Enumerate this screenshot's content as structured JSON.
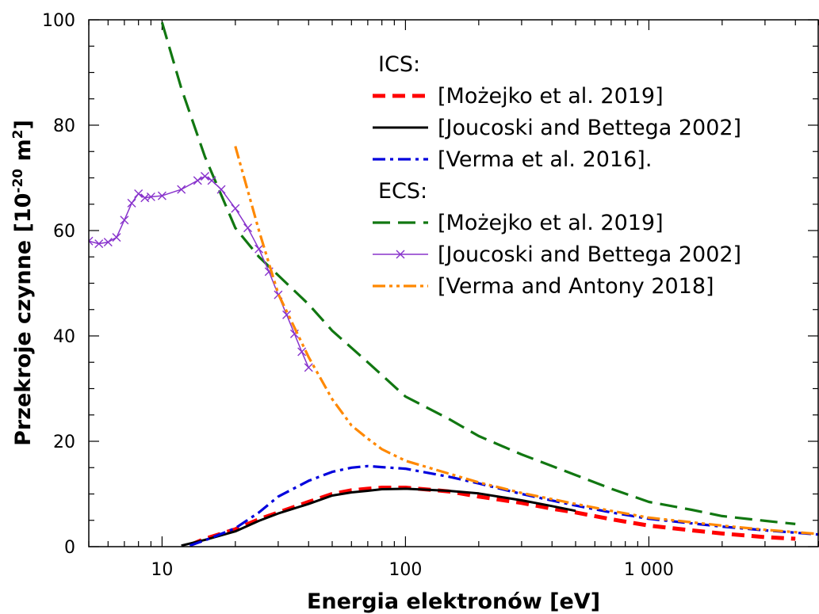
{
  "chart_data": {
    "type": "line",
    "xscale": "log",
    "xlim": [
      5,
      5000
    ],
    "ylim": [
      0,
      100
    ],
    "xlabel": "Energia elektronów [eV]",
    "ylabel": {
      "main": "Przekroje czynne [10",
      "exp": "-20",
      "mid": " m",
      "exp2": "2",
      "end": "]"
    },
    "xticks": [
      {
        "v": 10,
        "label": "10"
      },
      {
        "v": 100,
        "label": "100"
      },
      {
        "v": 1000,
        "label": "1 000"
      }
    ],
    "yticks": [
      {
        "v": 0,
        "label": "0"
      },
      {
        "v": 20,
        "label": "20"
      },
      {
        "v": 40,
        "label": "40"
      },
      {
        "v": 60,
        "label": "60"
      },
      {
        "v": 80,
        "label": "80"
      },
      {
        "v": 100,
        "label": "100"
      }
    ],
    "grid": false,
    "legend_position": "top-right",
    "legend_groups": [
      "ICS:",
      "ECS:"
    ],
    "series": [
      {
        "group": "ICS",
        "name": "[Możejko et al. 2019]",
        "color": "#ff0000",
        "style": "dash-thick",
        "points": [
          [
            13,
            0.3
          ],
          [
            15,
            1.5
          ],
          [
            20,
            3.3
          ],
          [
            25,
            5.2
          ],
          [
            30,
            6.5
          ],
          [
            40,
            8.5
          ],
          [
            50,
            10
          ],
          [
            60,
            10.7
          ],
          [
            70,
            11
          ],
          [
            80,
            11.2
          ],
          [
            100,
            11.2
          ],
          [
            150,
            10.5
          ],
          [
            200,
            9.5
          ],
          [
            300,
            8.3
          ],
          [
            400,
            7.2
          ],
          [
            500,
            6.5
          ],
          [
            700,
            5.2
          ],
          [
            1000,
            4
          ],
          [
            1500,
            3.1
          ],
          [
            2000,
            2.5
          ],
          [
            3000,
            1.8
          ],
          [
            4000,
            1.5
          ]
        ]
      },
      {
        "group": "ICS",
        "name": "[Joucoski and Bettega 2002]",
        "color": "#000000",
        "style": "solid",
        "points": [
          [
            12,
            0.2
          ],
          [
            15,
            1.3
          ],
          [
            20,
            2.9
          ],
          [
            25,
            4.9
          ],
          [
            30,
            6.3
          ],
          [
            40,
            8.1
          ],
          [
            50,
            9.7
          ],
          [
            60,
            10.3
          ],
          [
            70,
            10.6
          ],
          [
            80,
            10.9
          ],
          [
            100,
            11
          ],
          [
            150,
            10.6
          ],
          [
            200,
            10.1
          ],
          [
            300,
            8.8
          ],
          [
            400,
            7.7
          ],
          [
            500,
            6.8
          ]
        ]
      },
      {
        "group": "ICS",
        "name": "[Verma et al.  2016].",
        "color": "#0000dd",
        "style": "dashdot",
        "points": [
          [
            13,
            0.2
          ],
          [
            15,
            1.2
          ],
          [
            20,
            3.5
          ],
          [
            25,
            6.5
          ],
          [
            30,
            9.5
          ],
          [
            40,
            12.5
          ],
          [
            50,
            14.2
          ],
          [
            60,
            15
          ],
          [
            70,
            15.3
          ],
          [
            80,
            15.1
          ],
          [
            100,
            14.8
          ],
          [
            150,
            13.3
          ],
          [
            200,
            12
          ],
          [
            300,
            10
          ],
          [
            500,
            7.8
          ],
          [
            700,
            6.5
          ],
          [
            1000,
            5.3
          ],
          [
            2000,
            3.8
          ],
          [
            3000,
            3.1
          ],
          [
            5000,
            2.3
          ]
        ]
      },
      {
        "group": "ECS",
        "name": "[Możejko et al. 2019]",
        "color": "#117711",
        "style": "dash-long",
        "points": [
          [
            10,
            99.5
          ],
          [
            12,
            87
          ],
          [
            15,
            74
          ],
          [
            20,
            60.5
          ],
          [
            25,
            55
          ],
          [
            30,
            51.5
          ],
          [
            40,
            46
          ],
          [
            50,
            41
          ],
          [
            70,
            35
          ],
          [
            100,
            28.5
          ],
          [
            150,
            24.3
          ],
          [
            200,
            21
          ],
          [
            300,
            17.5
          ],
          [
            500,
            13.6
          ],
          [
            700,
            11
          ],
          [
            1000,
            8.5
          ],
          [
            1500,
            7
          ],
          [
            2000,
            5.8
          ],
          [
            3000,
            4.9
          ],
          [
            4000,
            4.3
          ]
        ]
      },
      {
        "group": "ECS",
        "name": "[Joucoski and Bettega 2002]",
        "color": "#8833cc",
        "style": "solid-marker",
        "points": [
          [
            5,
            58
          ],
          [
            5.5,
            57.5
          ],
          [
            6,
            57.8
          ],
          [
            6.5,
            58.7
          ],
          [
            7,
            62
          ],
          [
            7.5,
            65.2
          ],
          [
            8,
            67
          ],
          [
            8.5,
            66.2
          ],
          [
            9,
            66.4
          ],
          [
            10,
            66.6
          ],
          [
            12,
            67.8
          ],
          [
            14,
            69.5
          ],
          [
            15,
            70.3
          ],
          [
            16,
            69.5
          ],
          [
            17.5,
            67.8
          ],
          [
            20,
            64.2
          ],
          [
            22.5,
            60.5
          ],
          [
            25,
            56.5
          ],
          [
            27.5,
            52.2
          ],
          [
            30,
            47.8
          ],
          [
            32.5,
            44
          ],
          [
            35,
            40.4
          ],
          [
            37.5,
            37
          ],
          [
            40,
            34
          ]
        ]
      },
      {
        "group": "ECS",
        "name": "[Verma and Antony 2018]",
        "color": "#ff8800",
        "style": "dashdotdot",
        "points": [
          [
            20,
            76
          ],
          [
            25,
            60
          ],
          [
            30,
            48
          ],
          [
            40,
            36
          ],
          [
            50,
            28
          ],
          [
            60,
            23
          ],
          [
            70,
            20.5
          ],
          [
            80,
            18.5
          ],
          [
            100,
            16.3
          ],
          [
            150,
            13.9
          ],
          [
            200,
            12.2
          ],
          [
            300,
            10.2
          ],
          [
            500,
            8.1
          ],
          [
            700,
            6.8
          ],
          [
            1000,
            5.5
          ],
          [
            2000,
            4
          ],
          [
            3000,
            3.2
          ],
          [
            5000,
            2.4
          ]
        ]
      }
    ]
  }
}
